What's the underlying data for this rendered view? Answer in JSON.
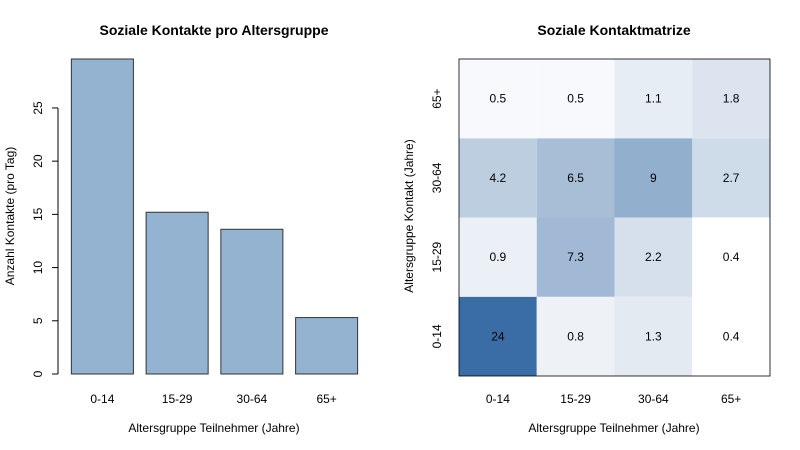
{
  "chart_data": [
    {
      "type": "bar",
      "title": "Soziale Kontakte pro Altersgruppe",
      "xlabel": "Altersgruppe Teilnehmer (Jahre)",
      "ylabel": "Anzahl Kontakte (pro Tag)",
      "categories": [
        "0-14",
        "15-29",
        "30-64",
        "65+"
      ],
      "values": [
        29.6,
        15.2,
        13.6,
        5.3
      ],
      "ylim": [
        0,
        29.6
      ],
      "yticks": [
        0,
        5,
        10,
        15,
        20,
        25
      ],
      "bar_color": "#94B3D1",
      "grid": false
    },
    {
      "type": "heatmap",
      "title": "Soziale Kontaktmatrize",
      "xlabel": "Altersgruppe Teilnehmer (Jahre)",
      "ylabel": "Altersgruppe Kontakt (Jahre)",
      "x_categories": [
        "0-14",
        "15-29",
        "30-64",
        "65+"
      ],
      "y_categories": [
        "0-14",
        "15-29",
        "30-64",
        "65+"
      ],
      "rows": [
        {
          "contact_age": "0-14",
          "values": [
            24,
            0.8,
            1.3,
            0.4
          ]
        },
        {
          "contact_age": "15-29",
          "values": [
            0.9,
            7.3,
            2.2,
            0.4
          ]
        },
        {
          "contact_age": "30-64",
          "values": [
            4.2,
            6.5,
            9,
            2.7
          ]
        },
        {
          "contact_age": "65+",
          "values": [
            0.5,
            0.5,
            1.1,
            1.8
          ]
        }
      ],
      "color_low": "#FFFFFF",
      "color_high": "#3A6CA6",
      "grid": false
    }
  ]
}
